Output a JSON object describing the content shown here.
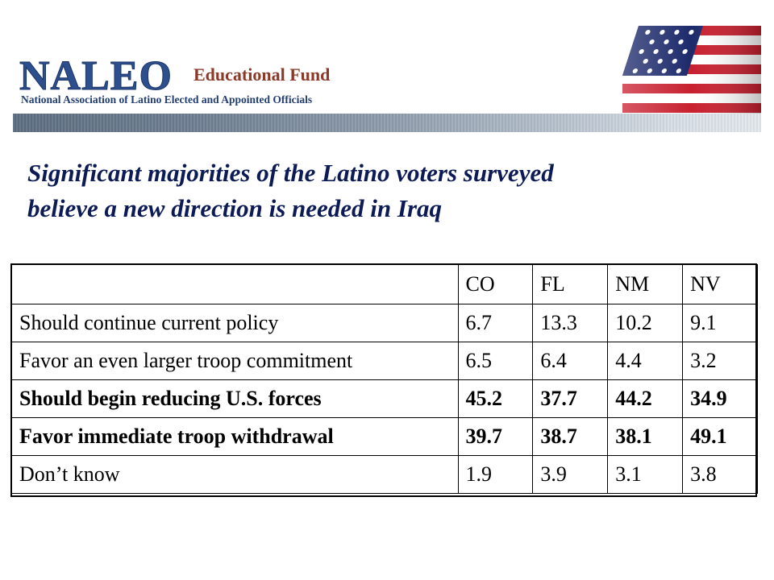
{
  "header": {
    "logo_main": "NALEO",
    "logo_edu": "Educational Fund",
    "logo_sub": "National Association of Latino Elected and Appointed Officials",
    "flag_icon": "us-flag-icon",
    "colors": {
      "logo_blue": "#2d4f8e",
      "logo_red": "#8b3a2a",
      "title_navy": "#0c1a55"
    }
  },
  "title": {
    "line1": "Significant majorities of the Latino voters surveyed",
    "line2": "believe a new direction is needed in Iraq"
  },
  "table": {
    "columns": [
      "",
      "CO",
      "FL",
      "NM",
      "NV"
    ],
    "rows": [
      {
        "label": "Should continue current policy",
        "values": [
          "6.7",
          "13.3",
          "10.2",
          "9.1"
        ],
        "bold": false
      },
      {
        "label": "Favor an even larger troop commitment",
        "values": [
          "6.5",
          "6.4",
          "4.4",
          "3.2"
        ],
        "bold": false
      },
      {
        "label": "Should begin reducing U.S. forces",
        "values": [
          "45.2",
          "37.7",
          "44.2",
          "34.9"
        ],
        "bold": true
      },
      {
        "label": "Favor immediate troop withdrawal",
        "values": [
          "39.7",
          "38.7",
          "38.1",
          "49.1"
        ],
        "bold": true
      },
      {
        "label": "Don’t know",
        "values": [
          "1.9",
          "3.9",
          "3.1",
          "3.8"
        ],
        "bold": false
      }
    ]
  }
}
